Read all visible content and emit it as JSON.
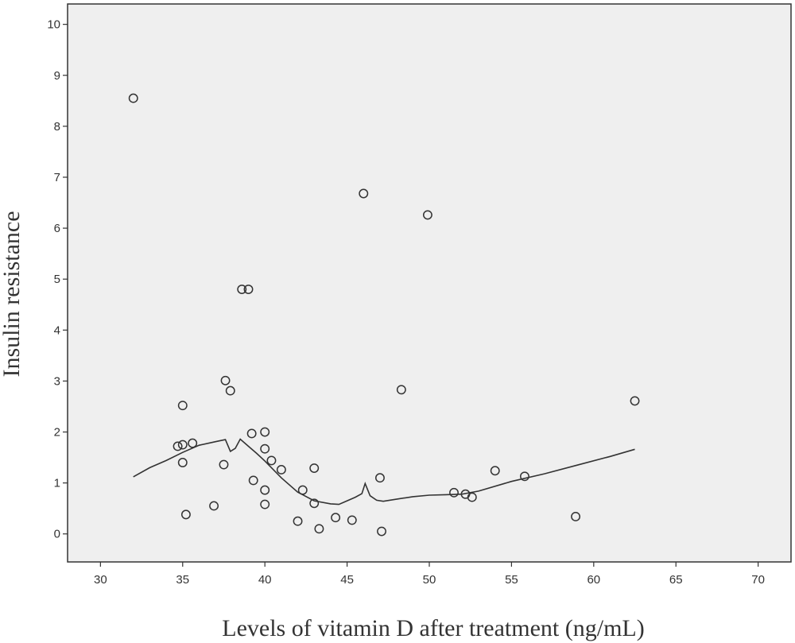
{
  "chart_data": {
    "type": "scatter",
    "title": "",
    "xlabel": "Levels of vitamin D after treatment (ng/mL)",
    "ylabel": "Insulin resistance",
    "xlim": [
      28,
      72
    ],
    "ylim": [
      -0.55,
      10.4
    ],
    "xticks": [
      30,
      35,
      40,
      45,
      50,
      55,
      60,
      65,
      70
    ],
    "yticks": [
      0,
      1,
      2,
      3,
      4,
      5,
      6,
      7,
      8,
      9,
      10
    ],
    "grid": false,
    "legend": "none",
    "plot_background": "#efefef",
    "marker_color": "#333333",
    "line_color": "#333333",
    "points": [
      {
        "x": 32.0,
        "y": 8.55
      },
      {
        "x": 34.7,
        "y": 1.72
      },
      {
        "x": 35.0,
        "y": 1.75
      },
      {
        "x": 35.0,
        "y": 2.52
      },
      {
        "x": 35.0,
        "y": 1.4
      },
      {
        "x": 35.2,
        "y": 0.38
      },
      {
        "x": 35.6,
        "y": 1.78
      },
      {
        "x": 36.9,
        "y": 0.55
      },
      {
        "x": 37.5,
        "y": 1.36
      },
      {
        "x": 37.6,
        "y": 3.01
      },
      {
        "x": 37.9,
        "y": 2.81
      },
      {
        "x": 38.6,
        "y": 4.8
      },
      {
        "x": 39.0,
        "y": 4.8
      },
      {
        "x": 39.2,
        "y": 1.97
      },
      {
        "x": 39.3,
        "y": 1.05
      },
      {
        "x": 40.0,
        "y": 2.0
      },
      {
        "x": 40.0,
        "y": 1.67
      },
      {
        "x": 40.0,
        "y": 0.86
      },
      {
        "x": 40.0,
        "y": 0.58
      },
      {
        "x": 40.4,
        "y": 1.44
      },
      {
        "x": 41.0,
        "y": 1.26
      },
      {
        "x": 42.0,
        "y": 0.25
      },
      {
        "x": 42.3,
        "y": 0.86
      },
      {
        "x": 43.0,
        "y": 1.29
      },
      {
        "x": 43.0,
        "y": 0.6
      },
      {
        "x": 43.3,
        "y": 0.1
      },
      {
        "x": 44.3,
        "y": 0.32
      },
      {
        "x": 45.3,
        "y": 0.27
      },
      {
        "x": 46.0,
        "y": 6.68
      },
      {
        "x": 47.0,
        "y": 1.1
      },
      {
        "x": 47.1,
        "y": 0.05
      },
      {
        "x": 48.3,
        "y": 2.83
      },
      {
        "x": 49.9,
        "y": 6.26
      },
      {
        "x": 51.5,
        "y": 0.81
      },
      {
        "x": 52.2,
        "y": 0.78
      },
      {
        "x": 52.6,
        "y": 0.72
      },
      {
        "x": 54.0,
        "y": 1.24
      },
      {
        "x": 55.8,
        "y": 1.13
      },
      {
        "x": 58.9,
        "y": 0.34
      },
      {
        "x": 62.5,
        "y": 2.61
      }
    ],
    "fit_line": [
      {
        "x": 32.0,
        "y": 1.12
      },
      {
        "x": 33.0,
        "y": 1.3
      },
      {
        "x": 34.0,
        "y": 1.44
      },
      {
        "x": 35.0,
        "y": 1.6
      },
      {
        "x": 36.0,
        "y": 1.74
      },
      {
        "x": 37.0,
        "y": 1.81
      },
      {
        "x": 37.6,
        "y": 1.85
      },
      {
        "x": 37.9,
        "y": 1.62
      },
      {
        "x": 38.2,
        "y": 1.68
      },
      {
        "x": 38.5,
        "y": 1.86
      },
      {
        "x": 39.0,
        "y": 1.72
      },
      {
        "x": 39.5,
        "y": 1.58
      },
      {
        "x": 40.0,
        "y": 1.43
      },
      {
        "x": 41.0,
        "y": 1.1
      },
      {
        "x": 42.0,
        "y": 0.82
      },
      {
        "x": 43.0,
        "y": 0.65
      },
      {
        "x": 44.0,
        "y": 0.59
      },
      {
        "x": 44.5,
        "y": 0.58
      },
      {
        "x": 45.0,
        "y": 0.65
      },
      {
        "x": 45.5,
        "y": 0.72
      },
      {
        "x": 45.9,
        "y": 0.79
      },
      {
        "x": 46.1,
        "y": 0.99
      },
      {
        "x": 46.4,
        "y": 0.75
      },
      {
        "x": 46.8,
        "y": 0.66
      },
      {
        "x": 47.2,
        "y": 0.64
      },
      {
        "x": 48.0,
        "y": 0.68
      },
      {
        "x": 49.0,
        "y": 0.73
      },
      {
        "x": 50.0,
        "y": 0.76
      },
      {
        "x": 51.0,
        "y": 0.77
      },
      {
        "x": 52.0,
        "y": 0.78
      },
      {
        "x": 53.0,
        "y": 0.84
      },
      {
        "x": 55.0,
        "y": 1.03
      },
      {
        "x": 57.0,
        "y": 1.18
      },
      {
        "x": 59.0,
        "y": 1.35
      },
      {
        "x": 61.0,
        "y": 1.52
      },
      {
        "x": 62.5,
        "y": 1.66
      }
    ]
  }
}
